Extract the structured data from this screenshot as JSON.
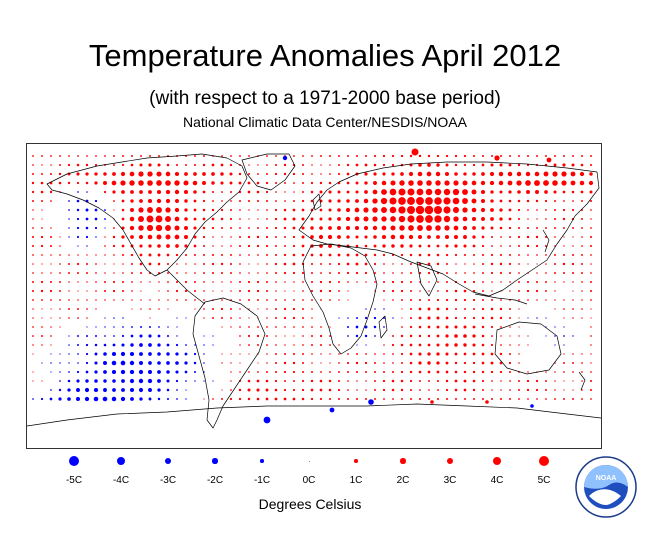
{
  "header": {
    "title": "Temperature Anomalies April 2012",
    "subtitle": "(with respect to a 1971-2000 base period)",
    "source": "National Climatic Data Center/NESDIS/NOAA"
  },
  "colors": {
    "warm": "#ff0000",
    "cold": "#0000ff",
    "coast": "#000000"
  },
  "legend": {
    "caption": "Degrees Celsius",
    "items": [
      {
        "label": "-5C",
        "value": -5
      },
      {
        "label": "-4C",
        "value": -4
      },
      {
        "label": "-3C",
        "value": -3
      },
      {
        "label": "-2C",
        "value": -2
      },
      {
        "label": "-1C",
        "value": -1
      },
      {
        "label": "0C",
        "value": 0
      },
      {
        "label": "1C",
        "value": 1
      },
      {
        "label": "2C",
        "value": 2
      },
      {
        "label": "3C",
        "value": 3
      },
      {
        "label": "4C",
        "value": 4
      },
      {
        "label": "5C",
        "value": 5
      }
    ]
  },
  "logo": {
    "text": "NOAA",
    "icon": "noaa-logo-icon"
  },
  "map": {
    "type": "dot-grid anomaly map",
    "warm_regions": [
      "Siberia",
      "Eastern Canada",
      "Arctic coast",
      "Central Asia"
    ],
    "cold_regions": [
      "Alaska",
      "Southern South America",
      "Southern Ocean",
      "Southern Africa"
    ]
  }
}
